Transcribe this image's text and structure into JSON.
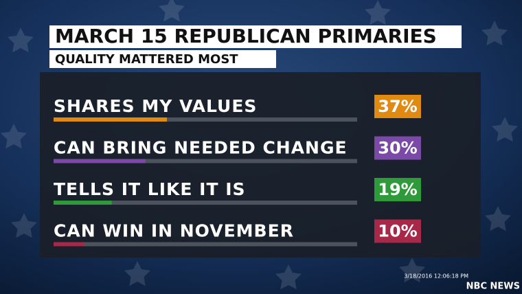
{
  "chart_data": {
    "type": "bar",
    "title": "MARCH 15 REPUBLICAN PRIMARIES",
    "subtitle": "QUALITY MATTERED MOST",
    "categories": [
      "SHARES MY VALUES",
      "CAN BRING NEEDED CHANGE",
      "TELLS IT LIKE IT IS",
      "CAN WIN IN NOVEMBER"
    ],
    "series": [
      {
        "colors": [
          "#e08a12",
          "#7b4aa8",
          "#2e9a3a",
          "#a8284a"
        ],
        "values": [
          37,
          30,
          19,
          10
        ],
        "value_labels": [
          "37%",
          "30%",
          "19%",
          "10%"
        ]
      }
    ],
    "xlim": [
      0,
      100
    ],
    "annotations": [
      "3/18/2016 12:06:18 PM",
      "NBC NEWS"
    ]
  }
}
